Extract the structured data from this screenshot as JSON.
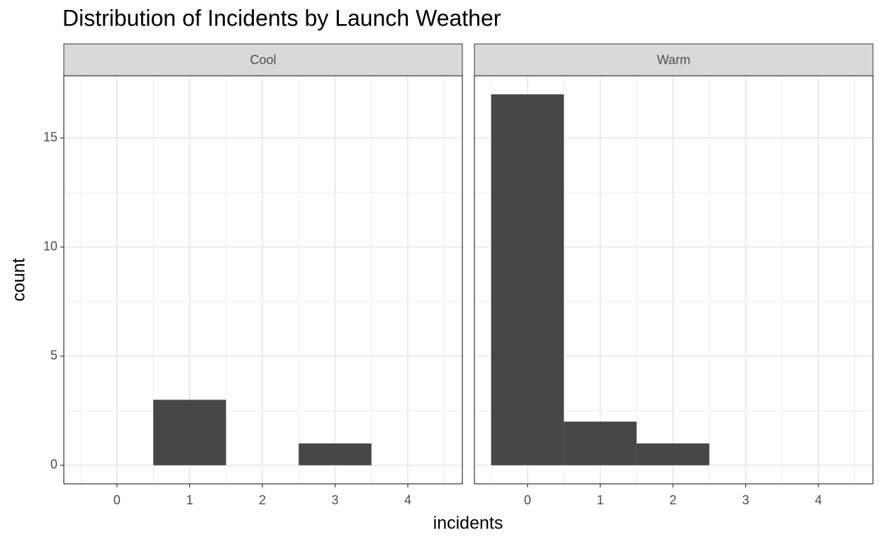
{
  "title": "Distribution of Incidents by Launch Weather",
  "x_label": "incidents",
  "y_label": "count",
  "chart_data": [
    {
      "type": "histogram",
      "facet": "Cool",
      "color": "#464646",
      "bins": [
        -0.5,
        0.5,
        1.5,
        2.5,
        3.5,
        4.5
      ],
      "values": [
        0,
        3,
        0,
        1,
        0
      ],
      "xlim": [
        -0.73,
        4.75
      ],
      "xticks": [
        0,
        1,
        2,
        3,
        4
      ],
      "ylim": [
        -0.85,
        17.85
      ],
      "yticks": [
        0,
        5,
        10,
        15
      ],
      "grid": true
    },
    {
      "type": "histogram",
      "facet": "Warm",
      "color": "#464646",
      "bins": [
        -0.5,
        0.5,
        1.5,
        2.5,
        3.5,
        4.5
      ],
      "values": [
        17,
        2,
        1,
        0,
        0
      ],
      "xlim": [
        -0.73,
        4.75
      ],
      "xticks": [
        0,
        1,
        2,
        3,
        4
      ],
      "ylim": [
        -0.85,
        17.85
      ],
      "yticks": [
        0,
        5,
        10,
        15
      ],
      "grid": true
    }
  ]
}
